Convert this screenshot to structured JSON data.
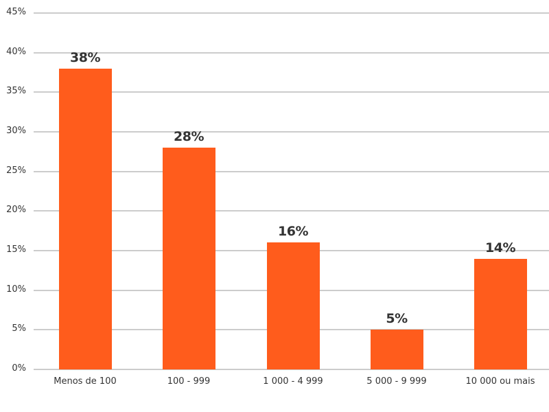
{
  "chart_data": {
    "type": "bar",
    "title": "",
    "xlabel": "",
    "ylabel": "",
    "categories": [
      "Menos de 100",
      "100 - 999",
      "1 000 - 4 999",
      "5 000 - 9 999",
      "10 000 ou mais"
    ],
    "values": [
      38,
      28,
      16,
      5,
      14
    ],
    "data_labels": [
      "38%",
      "28%",
      "16%",
      "5%",
      "14%"
    ],
    "ylim": [
      0,
      45
    ],
    "yticks": [
      "0%",
      "5%",
      "10%",
      "15%",
      "20%",
      "25%",
      "30%",
      "35%",
      "40%",
      "45%"
    ],
    "grid": true,
    "legend": null,
    "bar_color": "#ff5c1c"
  }
}
